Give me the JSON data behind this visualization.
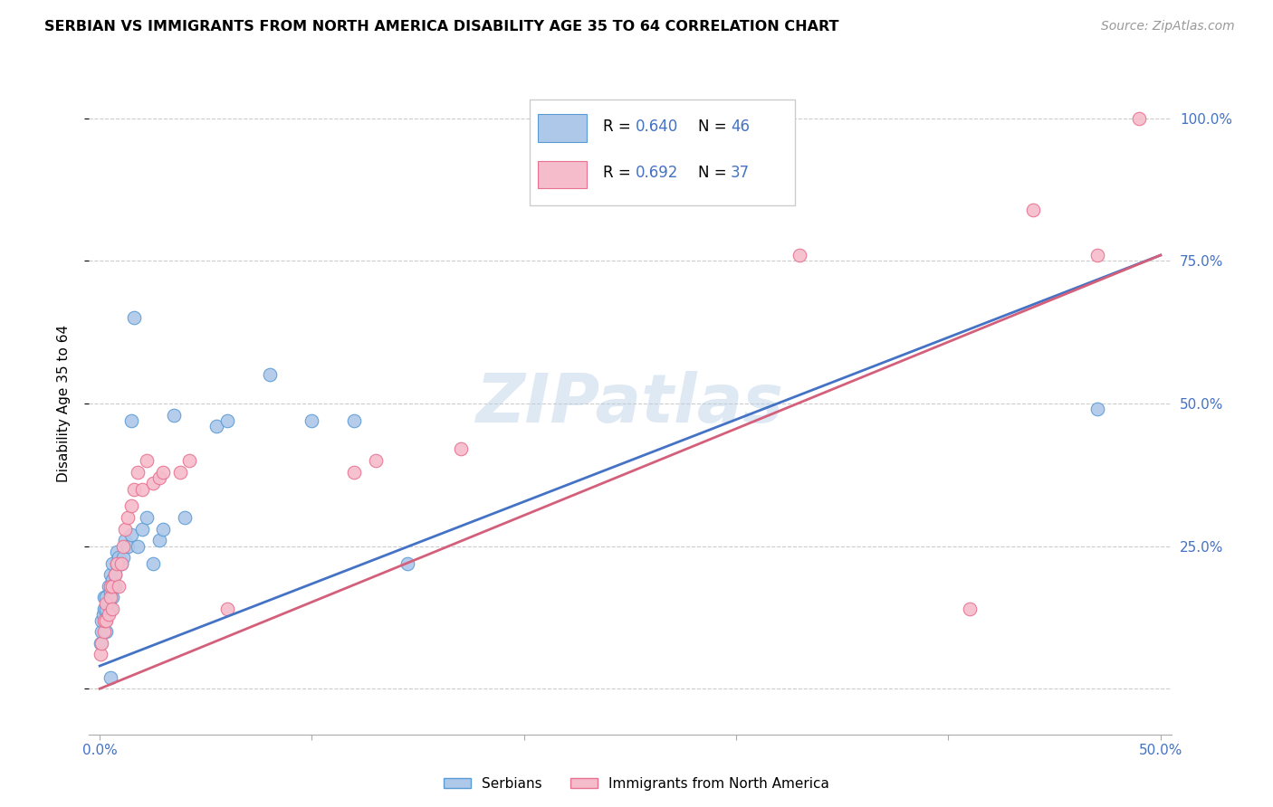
{
  "title": "SERBIAN VS IMMIGRANTS FROM NORTH AMERICA DISABILITY AGE 35 TO 64 CORRELATION CHART",
  "source": "Source: ZipAtlas.com",
  "ylabel": "Disability Age 35 to 64",
  "xlim": [
    -0.005,
    0.505
  ],
  "ylim": [
    -0.08,
    1.08
  ],
  "xtick_positions": [
    0.0,
    0.1,
    0.2,
    0.3,
    0.4,
    0.5
  ],
  "xticklabels": [
    "0.0%",
    "",
    "",
    "",
    "",
    "50.0%"
  ],
  "ytick_positions": [
    0.0,
    0.25,
    0.5,
    0.75,
    1.0
  ],
  "yticklabels_right": [
    "",
    "25.0%",
    "50.0%",
    "75.0%",
    "100.0%"
  ],
  "serbian_color": "#adc8e8",
  "serbian_color_dark": "#5b9bd5",
  "immigrant_color": "#f5bccb",
  "immigrant_color_dark": "#e87090",
  "line_serbian": "#4472c4",
  "line_immigrant": "#d45f7a",
  "watermark": "ZIPatlas",
  "background_color": "#ffffff",
  "grid_color": "#cccccc",
  "serbian_x": [
    0.0005,
    0.001,
    0.001,
    0.0015,
    0.002,
    0.002,
    0.0025,
    0.003,
    0.003,
    0.003,
    0.004,
    0.004,
    0.005,
    0.005,
    0.005,
    0.006,
    0.006,
    0.006,
    0.007,
    0.007,
    0.008,
    0.008,
    0.009,
    0.01,
    0.011,
    0.012,
    0.013,
    0.015,
    0.016,
    0.018,
    0.02,
    0.022,
    0.025,
    0.028,
    0.03,
    0.035,
    0.04,
    0.055,
    0.06,
    0.08,
    0.1,
    0.12,
    0.145,
    0.015,
    0.47,
    0.005
  ],
  "serbian_y": [
    0.08,
    0.1,
    0.12,
    0.13,
    0.14,
    0.16,
    0.12,
    0.14,
    0.1,
    0.16,
    0.15,
    0.18,
    0.14,
    0.17,
    0.2,
    0.16,
    0.19,
    0.22,
    0.18,
    0.2,
    0.22,
    0.24,
    0.23,
    0.22,
    0.23,
    0.26,
    0.25,
    0.27,
    0.65,
    0.25,
    0.28,
    0.3,
    0.22,
    0.26,
    0.28,
    0.48,
    0.3,
    0.46,
    0.47,
    0.55,
    0.47,
    0.47,
    0.22,
    0.47,
    0.49,
    0.02
  ],
  "immigrant_x": [
    0.0005,
    0.001,
    0.002,
    0.002,
    0.003,
    0.003,
    0.004,
    0.005,
    0.005,
    0.006,
    0.006,
    0.007,
    0.008,
    0.009,
    0.01,
    0.011,
    0.012,
    0.013,
    0.015,
    0.016,
    0.018,
    0.02,
    0.022,
    0.025,
    0.028,
    0.03,
    0.06,
    0.12,
    0.13,
    0.17,
    0.33,
    0.41,
    0.44,
    0.47,
    0.49,
    0.038,
    0.042
  ],
  "immigrant_y": [
    0.06,
    0.08,
    0.1,
    0.12,
    0.12,
    0.15,
    0.13,
    0.16,
    0.18,
    0.14,
    0.18,
    0.2,
    0.22,
    0.18,
    0.22,
    0.25,
    0.28,
    0.3,
    0.32,
    0.35,
    0.38,
    0.35,
    0.4,
    0.36,
    0.37,
    0.38,
    0.14,
    0.38,
    0.4,
    0.42,
    0.76,
    0.14,
    0.84,
    0.76,
    1.0,
    0.38,
    0.4
  ],
  "line_serbian_x0": 0.0,
  "line_serbian_x1": 0.5,
  "line_serbian_y0": 0.04,
  "line_serbian_y1": 0.76,
  "line_immigrant_x0": 0.0,
  "line_immigrant_x1": 0.5,
  "line_immigrant_y0": 0.0,
  "line_immigrant_y1": 0.76
}
